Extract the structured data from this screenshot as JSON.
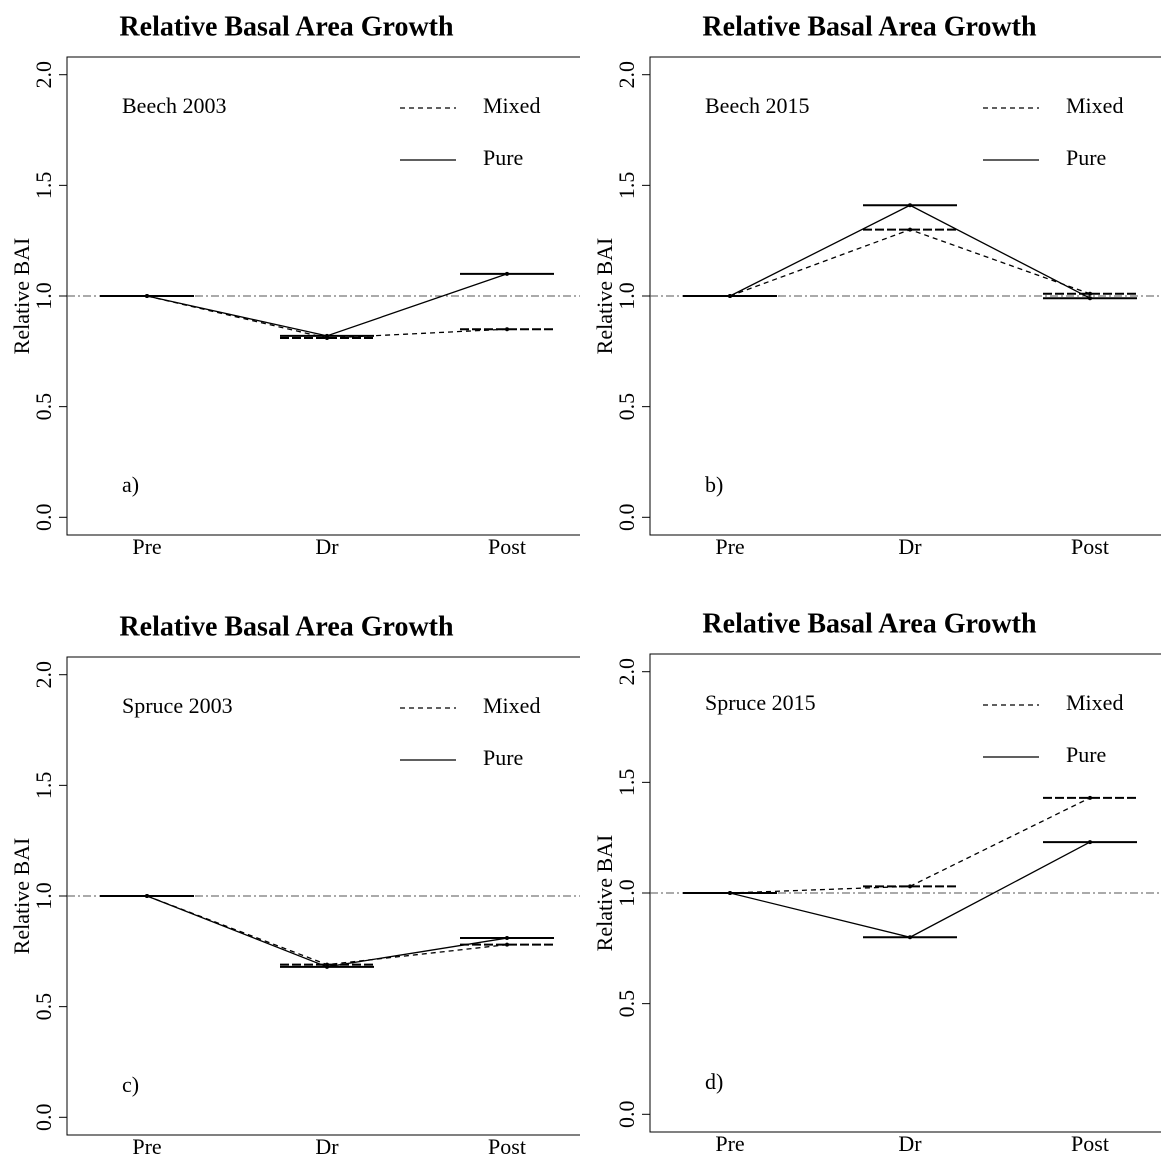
{
  "chart_data": [
    {
      "type": "line",
      "title": "Relative Basal Area Growth",
      "y_label": "Relative BAI",
      "annotation": "Beech 2003",
      "panel_label": "a)",
      "categories": [
        "Pre",
        "Dr",
        "Post"
      ],
      "series": [
        {
          "name": "Mixed",
          "color": "#000000",
          "line_style": "dashed",
          "values": [
            1.0,
            0.81,
            0.85
          ]
        },
        {
          "name": "Pure",
          "color": "#000000",
          "line_style": "solid",
          "values": [
            1.0,
            0.82,
            1.1
          ]
        }
      ],
      "ylim": [
        -0.08,
        2.08
      ],
      "yticks": [
        {
          "value": 0,
          "label": "0.0"
        },
        {
          "value": 0.5,
          "label": "0.5"
        },
        {
          "value": 1,
          "label": "1.0"
        },
        {
          "value": 1.5,
          "label": "1.5"
        },
        {
          "value": 2,
          "label": "2.0"
        }
      ],
      "reference_line": 1
    },
    {
      "type": "line",
      "title": "Relative Basal Area Growth",
      "y_label": "Relative BAI",
      "annotation": "Beech 2015",
      "panel_label": "b)",
      "categories": [
        "Pre",
        "Dr",
        "Post"
      ],
      "series": [
        {
          "name": "Mixed",
          "color": "#000000",
          "line_style": "dashed",
          "values": [
            1.0,
            1.3,
            1.01
          ]
        },
        {
          "name": "Pure",
          "color": "#000000",
          "line_style": "solid",
          "values": [
            1.0,
            1.41,
            0.99
          ]
        }
      ],
      "ylim": [
        -0.08,
        2.08
      ],
      "yticks": [
        {
          "value": 0,
          "label": "0.0"
        },
        {
          "value": 0.5,
          "label": "0.5"
        },
        {
          "value": 1,
          "label": "1.0"
        },
        {
          "value": 1.5,
          "label": "1.5"
        },
        {
          "value": 2,
          "label": "2.0"
        }
      ],
      "reference_line": 1
    },
    {
      "type": "line",
      "title": "Relative Basal Area Growth",
      "y_label": "Relative BAI",
      "annotation": "Spruce 2003",
      "panel_label": "c)",
      "categories": [
        "Pre",
        "Dr",
        "Post"
      ],
      "series": [
        {
          "name": "Mixed",
          "color": "#000000",
          "line_style": "dashed",
          "values": [
            1.0,
            0.69,
            0.78
          ]
        },
        {
          "name": "Pure",
          "color": "#000000",
          "line_style": "solid",
          "values": [
            1.0,
            0.68,
            0.81
          ]
        }
      ],
      "ylim": [
        -0.08,
        2.08
      ],
      "yticks": [
        {
          "value": 0,
          "label": "0.0"
        },
        {
          "value": 0.5,
          "label": "0.5"
        },
        {
          "value": 1,
          "label": "1.0"
        },
        {
          "value": 1.5,
          "label": "1.5"
        },
        {
          "value": 2,
          "label": "2.0"
        }
      ],
      "reference_line": 1
    },
    {
      "type": "line",
      "title": "Relative Basal Area Growth",
      "y_label": "Relative BAI",
      "annotation": "Spruce 2015",
      "panel_label": "d)",
      "categories": [
        "Pre",
        "Dr",
        "Post"
      ],
      "series": [
        {
          "name": "Mixed",
          "color": "#000000",
          "line_style": "dashed",
          "values": [
            1.0,
            1.03,
            1.43
          ]
        },
        {
          "name": "Pure",
          "color": "#000000",
          "line_style": "solid",
          "values": [
            1.0,
            0.8,
            1.23
          ]
        }
      ],
      "ylim": [
        -0.08,
        2.08
      ],
      "yticks": [
        {
          "value": 0,
          "label": "0.0"
        },
        {
          "value": 0.5,
          "label": "0.5"
        },
        {
          "value": 1,
          "label": "1.0"
        },
        {
          "value": 1.5,
          "label": "1.5"
        },
        {
          "value": 2,
          "label": "2.0"
        }
      ],
      "reference_line": 1
    }
  ]
}
